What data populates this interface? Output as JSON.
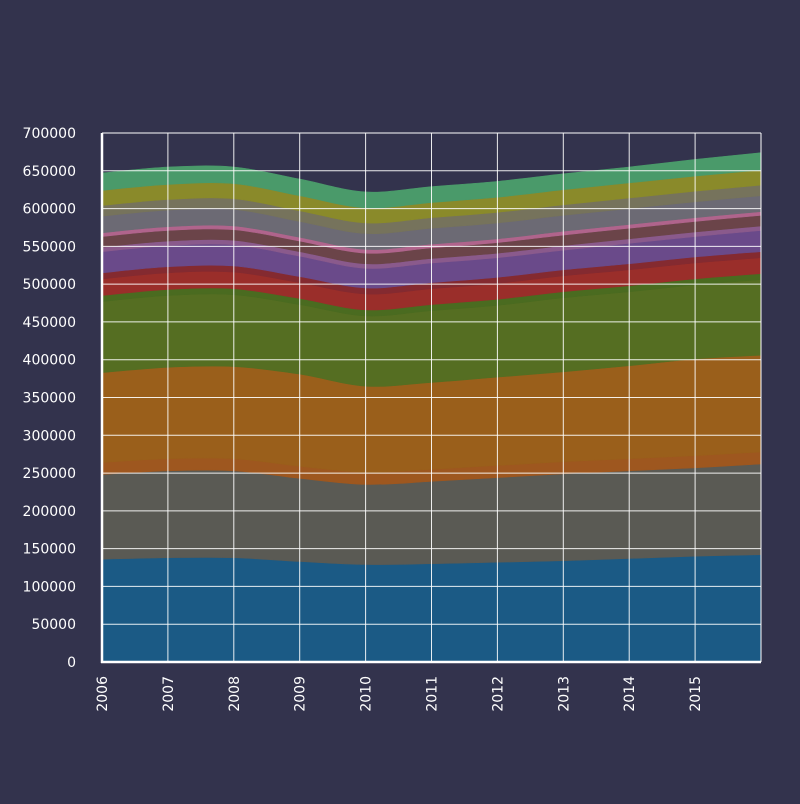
{
  "colors": {
    "background": "#33334d",
    "axis": "#ffffff",
    "grid": "#ffffff",
    "tick_label": "#ffffff"
  },
  "chart_data": {
    "type": "area",
    "stacked": true,
    "title": "",
    "xlabel": "",
    "ylabel": "",
    "x": [
      2006,
      2007,
      2008,
      2009,
      2010,
      2011,
      2012,
      2013,
      2014,
      2015,
      2016
    ],
    "xticks": [
      "2006",
      "2007",
      "2008",
      "2009",
      "2010",
      "2011",
      "2012",
      "2013",
      "2014",
      "2015"
    ],
    "yticks": [
      "0",
      "50000",
      "100000",
      "150000",
      "200000",
      "250000",
      "300000",
      "350000",
      "400000",
      "450000",
      "500000",
      "550000",
      "600000",
      "650000",
      "700000"
    ],
    "ylim": [
      0,
      700000
    ],
    "grid": true,
    "legend": false,
    "series": [
      {
        "color": "#1b5a85",
        "values": [
          136000,
          138000,
          138000,
          133000,
          129000,
          130000,
          132000,
          134000,
          137000,
          140000,
          142000
        ]
      },
      {
        "color": "#5a5a54",
        "values": [
          112000,
          115000,
          115000,
          110000,
          106000,
          109000,
          112000,
          115000,
          116000,
          117000,
          120000
        ]
      },
      {
        "color": "#9e571f",
        "values": [
          16000,
          16000,
          16000,
          16000,
          16000,
          16000,
          16000,
          16000,
          16000,
          16000,
          16000
        ]
      },
      {
        "color": "#9a5f1b",
        "values": [
          119000,
          121000,
          122000,
          122000,
          114000,
          115000,
          117000,
          119000,
          123000,
          128000,
          128000
        ]
      },
      {
        "color": "#556e22",
        "values": [
          94000,
          95000,
          95000,
          92000,
          93000,
          95000,
          95000,
          98000,
          98000,
          98000,
          100000
        ]
      },
      {
        "color": "#4a6b20",
        "values": [
          8000,
          8000,
          8000,
          8000,
          8000,
          8000,
          8000,
          8000,
          8000,
          8000,
          8000
        ]
      },
      {
        "color": "#9a2e2a",
        "values": [
          22000,
          22000,
          22000,
          21000,
          21000,
          21000,
          21000,
          21000,
          21000,
          21000,
          21000
        ]
      },
      {
        "color": "#842a30",
        "values": [
          8000,
          8000,
          8000,
          8000,
          8000,
          8000,
          8000,
          8000,
          8000,
          8000,
          8000
        ]
      },
      {
        "color": "#6a4a8a",
        "values": [
          28000,
          28000,
          28000,
          27000,
          26000,
          26000,
          26000,
          26000,
          27000,
          27000,
          28000
        ]
      },
      {
        "color": "#8a5a8c",
        "values": [
          6000,
          6000,
          6000,
          6000,
          6000,
          6000,
          6000,
          6000,
          6000,
          6000,
          6000
        ]
      },
      {
        "color": "#6b4449",
        "values": [
          14000,
          14000,
          14000,
          14000,
          14000,
          14000,
          14000,
          14000,
          14000,
          14000,
          14000
        ]
      },
      {
        "color": "#b0648c",
        "values": [
          5000,
          5000,
          5000,
          5000,
          5000,
          5000,
          5000,
          5000,
          5000,
          5000,
          5000
        ]
      },
      {
        "color": "#6c6a74",
        "values": [
          22000,
          22000,
          22000,
          21000,
          21000,
          21000,
          21000,
          21000,
          21000,
          21000,
          21000
        ]
      },
      {
        "color": "#76735c",
        "values": [
          14000,
          14000,
          14000,
          14000,
          14000,
          14000,
          14000,
          14000,
          14000,
          14000,
          14000
        ]
      },
      {
        "color": "#8a8a2a",
        "values": [
          20000,
          20000,
          20000,
          20000,
          20000,
          20000,
          20000,
          20000,
          20000,
          20000,
          20000
        ]
      },
      {
        "color": "#4a9a6a",
        "values": [
          23000,
          23000,
          22000,
          22000,
          21000,
          21000,
          21000,
          21000,
          21000,
          22000,
          23000
        ]
      }
    ]
  }
}
